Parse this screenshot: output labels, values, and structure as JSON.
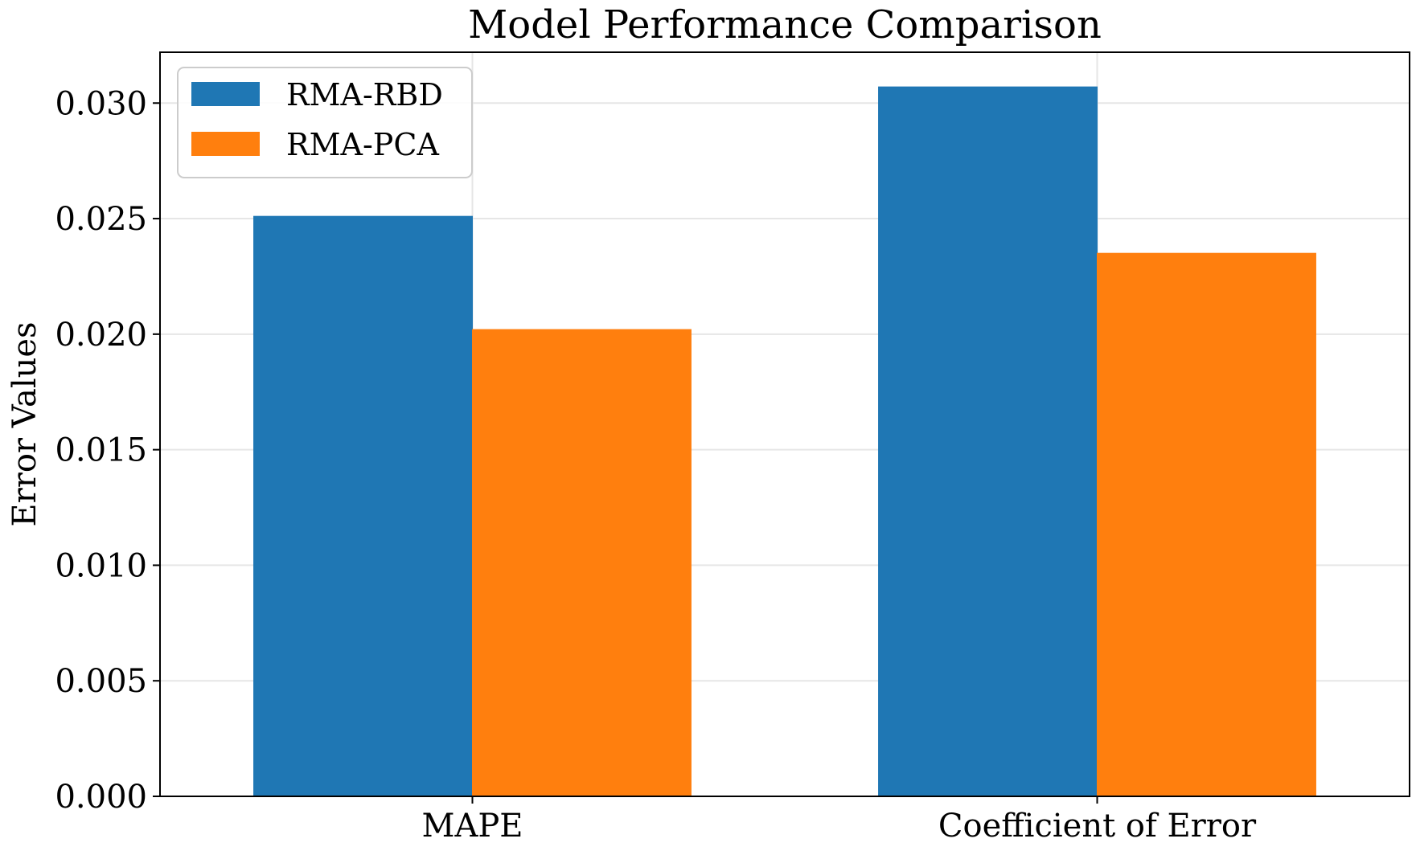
{
  "chart_data": {
    "type": "bar",
    "title": "Model Performance Comparison",
    "xlabel": "",
    "ylabel": "Error Values",
    "categories": [
      "MAPE",
      "Coefficient of Error"
    ],
    "series": [
      {
        "name": "RMA-RBD",
        "values": [
          0.0251,
          0.0307
        ],
        "color": "#1f77b4"
      },
      {
        "name": "RMA-PCA",
        "values": [
          0.0202,
          0.0235
        ],
        "color": "#ff7f0e"
      }
    ],
    "ylim": [
      0,
      0.0322
    ],
    "yticks": [
      "0.000",
      "0.005",
      "0.010",
      "0.015",
      "0.020",
      "0.025",
      "0.030"
    ],
    "grid": true,
    "legend_position": "top-left"
  }
}
